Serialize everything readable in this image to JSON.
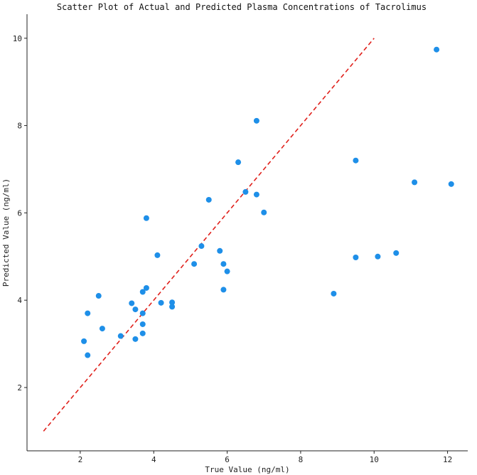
{
  "chart_data": {
    "type": "scatter",
    "title": "Scatter Plot of Actual and Predicted Plasma Concentrations of Tacrolimus",
    "xlabel": "True Value (ng/ml)",
    "ylabel": "Predicted Value (ng/ml)",
    "xlim": [
      0.55,
      12.55
    ],
    "ylim": [
      0.55,
      10.55
    ],
    "x_ticks": [
      2,
      4,
      6,
      8,
      10,
      12
    ],
    "y_ticks": [
      2,
      4,
      6,
      8,
      10
    ],
    "grid": false,
    "point_color": "#1e8fe8",
    "reference_line": {
      "from": [
        1,
        1
      ],
      "to": [
        10,
        10
      ],
      "color": "#e0201b",
      "style": "dashed"
    },
    "points": [
      {
        "x": 2.1,
        "y": 3.06
      },
      {
        "x": 2.2,
        "y": 2.74
      },
      {
        "x": 2.2,
        "y": 3.7
      },
      {
        "x": 2.5,
        "y": 4.1
      },
      {
        "x": 2.6,
        "y": 3.35
      },
      {
        "x": 3.1,
        "y": 3.18
      },
      {
        "x": 3.4,
        "y": 3.93
      },
      {
        "x": 3.5,
        "y": 3.79
      },
      {
        "x": 3.5,
        "y": 3.11
      },
      {
        "x": 3.7,
        "y": 4.19
      },
      {
        "x": 3.7,
        "y": 3.7
      },
      {
        "x": 3.7,
        "y": 3.45
      },
      {
        "x": 3.7,
        "y": 3.24
      },
      {
        "x": 3.8,
        "y": 4.28
      },
      {
        "x": 3.8,
        "y": 5.88
      },
      {
        "x": 4.1,
        "y": 5.03
      },
      {
        "x": 4.2,
        "y": 3.94
      },
      {
        "x": 4.5,
        "y": 3.95
      },
      {
        "x": 4.5,
        "y": 3.85
      },
      {
        "x": 5.1,
        "y": 4.83
      },
      {
        "x": 5.3,
        "y": 5.24
      },
      {
        "x": 5.5,
        "y": 6.3
      },
      {
        "x": 5.8,
        "y": 5.13
      },
      {
        "x": 5.9,
        "y": 4.83
      },
      {
        "x": 5.9,
        "y": 4.24
      },
      {
        "x": 6.0,
        "y": 4.66
      },
      {
        "x": 6.3,
        "y": 7.16
      },
      {
        "x": 6.5,
        "y": 6.48
      },
      {
        "x": 6.8,
        "y": 8.11
      },
      {
        "x": 6.8,
        "y": 6.42
      },
      {
        "x": 7.0,
        "y": 6.01
      },
      {
        "x": 8.9,
        "y": 4.15
      },
      {
        "x": 9.5,
        "y": 7.2
      },
      {
        "x": 9.5,
        "y": 4.98
      },
      {
        "x": 10.1,
        "y": 5.0
      },
      {
        "x": 10.6,
        "y": 5.08
      },
      {
        "x": 11.1,
        "y": 6.7
      },
      {
        "x": 11.7,
        "y": 9.74
      },
      {
        "x": 12.1,
        "y": 6.66
      }
    ]
  }
}
